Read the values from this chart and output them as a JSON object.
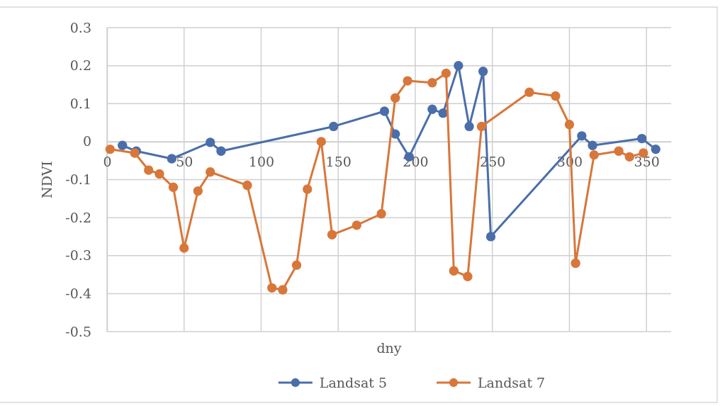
{
  "chart_data": {
    "type": "line",
    "xlabel": "dny",
    "ylabel": "NDVI",
    "xlim": [
      0,
      366
    ],
    "xticks": [
      0,
      50,
      100,
      150,
      200,
      250,
      300,
      350
    ],
    "ylim": [
      -0.5,
      0.3
    ],
    "yticks": [
      {
        "value": -0.5,
        "label": "-0.5"
      },
      {
        "value": -0.4,
        "label": "-0.4"
      },
      {
        "value": -0.3,
        "label": "-0.3"
      },
      {
        "value": -0.2,
        "label": "-0.2"
      },
      {
        "value": -0.1,
        "label": "-0.1"
      },
      {
        "value": 0,
        "label": "0"
      },
      {
        "value": 0.1,
        "label": "0.1"
      },
      {
        "value": 0.2,
        "label": "0.2"
      },
      {
        "value": 0.3,
        "label": "0.3"
      }
    ],
    "grid": true,
    "legend": "bottom",
    "marker": "circle",
    "series": [
      {
        "name": "Landsat 5",
        "color": "#4a6ea9",
        "x": [
          10,
          19,
          42,
          67,
          74,
          147,
          180,
          187,
          196,
          211,
          218,
          228,
          235,
          244,
          249,
          308,
          315,
          347,
          356
        ],
        "values": [
          -0.01,
          -0.025,
          -0.045,
          -0.002,
          -0.025,
          0.04,
          0.08,
          0.02,
          -0.04,
          0.085,
          0.075,
          0.2,
          0.04,
          0.185,
          -0.25,
          0.015,
          -0.01,
          0.008,
          -0.02
        ]
      },
      {
        "name": "Landsat 7",
        "color": "#d8773a",
        "x": [
          2,
          18,
          27,
          34,
          43,
          50,
          59,
          67,
          91,
          107,
          114,
          123,
          130,
          139,
          146,
          162,
          178,
          187,
          195,
          211,
          220,
          225,
          234,
          243,
          274,
          291,
          300,
          304,
          316,
          332,
          339,
          348
        ],
        "values": [
          -0.02,
          -0.03,
          -0.075,
          -0.085,
          -0.12,
          -0.28,
          -0.13,
          -0.08,
          -0.115,
          -0.385,
          -0.39,
          -0.325,
          -0.125,
          0,
          -0.245,
          -0.22,
          -0.19,
          0.115,
          0.16,
          0.155,
          0.18,
          -0.34,
          -0.355,
          0.04,
          0.13,
          0.12,
          0.045,
          -0.32,
          -0.035,
          -0.025,
          -0.04,
          -0.03
        ]
      }
    ]
  }
}
